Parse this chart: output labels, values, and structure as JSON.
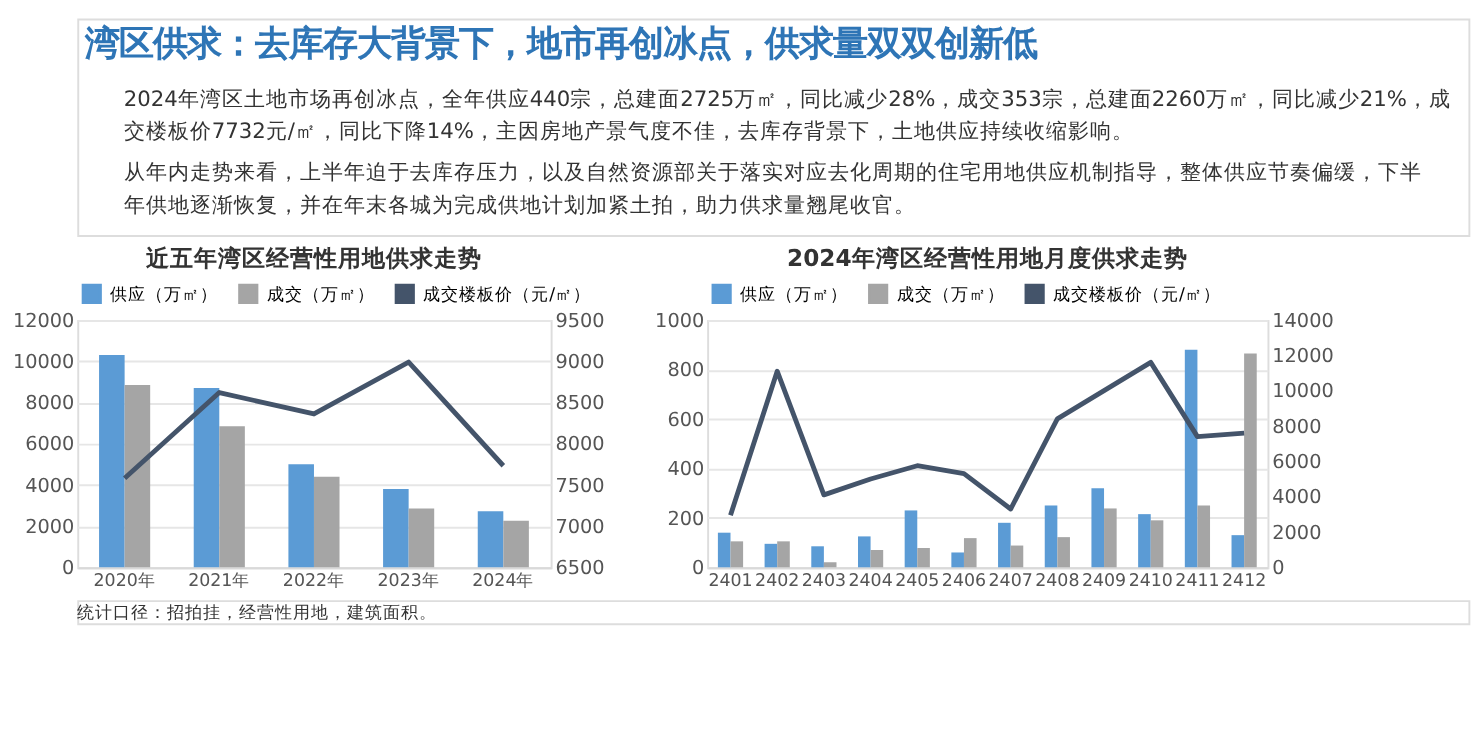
{
  "chart_data": [
    {
      "type": "other",
      "title": "湾区供求：去库存大背景下，地市再创冰点，供求量双双创新低",
      "annotations": [
        "2024年湾区土地市场再创冰点，全年供应440宗，总建面2725万㎡，同比减少28%，成交353宗，总建面2260万㎡，同比减少21%，成交楼板价7732元/㎡，同比下降14%，主因房地产景气度不佳，去库存背景下，土地供应持续收缩影响。",
        "从年内走势来看，上半年迫于去库存压力，以及自然资源部关于落实对应去化周期的住宅用地供应机制指导，整体供应节奏偏缓，下半年供地逐渐恢复，并在年末各城为完成供地计划加紧土拍，助力供求量翘尾收官。"
      ]
    },
    {
      "type": "bar",
      "title": "近五年湾区经营性用地供求走势",
      "categories": [
        "2020年",
        "2021年",
        "2022年",
        "2023年",
        "2024年"
      ],
      "series": [
        {
          "name": "供应（万㎡）",
          "color": "#5b9bd5",
          "values": [
            10300,
            8700,
            5000,
            3800,
            2725
          ]
        },
        {
          "name": "成交（万㎡）",
          "color": "#a5a5a5",
          "values": [
            8850,
            6850,
            4400,
            2850,
            2260
          ]
        },
        {
          "name": "成交楼板价（元/㎡）",
          "color": "#44546a",
          "type": "line",
          "axis": "y2",
          "values": [
            7580,
            8620,
            8360,
            8990,
            7732
          ]
        }
      ],
      "ylim": [
        0,
        12000
      ],
      "yticks": [
        0,
        2000,
        4000,
        6000,
        8000,
        10000,
        12000
      ],
      "y2lim": [
        6500,
        9500
      ],
      "y2ticks": [
        6500,
        7000,
        7500,
        8000,
        8500,
        9000,
        9500
      ],
      "grid": "y",
      "legend": "top",
      "annotations": [
        "统计口径：招拍挂，经营性用地，建筑面积。"
      ]
    },
    {
      "type": "bar",
      "title": "2024年湾区经营性用地月度供求走势",
      "categories": [
        "2401",
        "2402",
        "2403",
        "2404",
        "2405",
        "2406",
        "2407",
        "2408",
        "2409",
        "2410",
        "2411",
        "2412"
      ],
      "series": [
        {
          "name": "供应（万㎡）",
          "color": "#5b9bd5",
          "values": [
            140,
            95,
            85,
            125,
            230,
            60,
            180,
            250,
            320,
            215,
            880,
            130
          ]
        },
        {
          "name": "成交（万㎡）",
          "color": "#a5a5a5",
          "values": [
            105,
            105,
            20,
            70,
            78,
            118,
            88,
            122,
            238,
            190,
            250,
            865
          ]
        },
        {
          "name": "成交楼板价（元/㎡）",
          "color": "#44546a",
          "type": "line",
          "axis": "y2",
          "values": [
            2950,
            11100,
            4100,
            5000,
            5750,
            5300,
            3300,
            8400,
            10000,
            11600,
            7400,
            7600
          ]
        }
      ],
      "ylim": [
        0,
        1000
      ],
      "yticks": [
        0,
        200,
        400,
        600,
        800,
        1000
      ],
      "y2lim": [
        0,
        14000
      ],
      "y2ticks": [
        0,
        2000,
        4000,
        6000,
        8000,
        10000,
        12000,
        14000
      ],
      "grid": "y",
      "legend": "top"
    }
  ]
}
